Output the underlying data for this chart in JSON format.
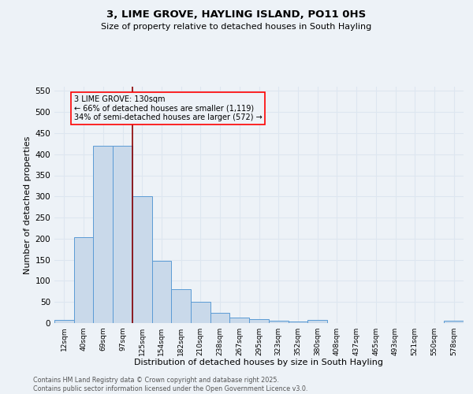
{
  "title1": "3, LIME GROVE, HAYLING ISLAND, PO11 0HS",
  "title2": "Size of property relative to detached houses in South Hayling",
  "xlabel": "Distribution of detached houses by size in South Hayling",
  "ylabel": "Number of detached properties",
  "bin_labels": [
    "12sqm",
    "40sqm",
    "69sqm",
    "97sqm",
    "125sqm",
    "154sqm",
    "182sqm",
    "210sqm",
    "238sqm",
    "267sqm",
    "295sqm",
    "323sqm",
    "352sqm",
    "380sqm",
    "408sqm",
    "437sqm",
    "465sqm",
    "493sqm",
    "521sqm",
    "550sqm",
    "578sqm"
  ],
  "bar_values": [
    8,
    203,
    420,
    420,
    300,
    148,
    81,
    50,
    24,
    13,
    9,
    6,
    3,
    8,
    0,
    0,
    0,
    0,
    0,
    0,
    5
  ],
  "bar_color": "#c9d9ea",
  "bar_edge_color": "#5b9bd5",
  "red_line_bin": 4,
  "annotation_title": "3 LIME GROVE: 130sqm",
  "annotation_line1": "← 66% of detached houses are smaller (1,119)",
  "annotation_line2": "34% of semi-detached houses are larger (572) →",
  "ylim": [
    0,
    560
  ],
  "yticks": [
    0,
    50,
    100,
    150,
    200,
    250,
    300,
    350,
    400,
    450,
    500,
    550
  ],
  "footer1": "Contains HM Land Registry data © Crown copyright and database right 2025.",
  "footer2": "Contains public sector information licensed under the Open Government Licence v3.0.",
  "bg_color": "#edf2f7",
  "grid_color": "#dde6f0"
}
